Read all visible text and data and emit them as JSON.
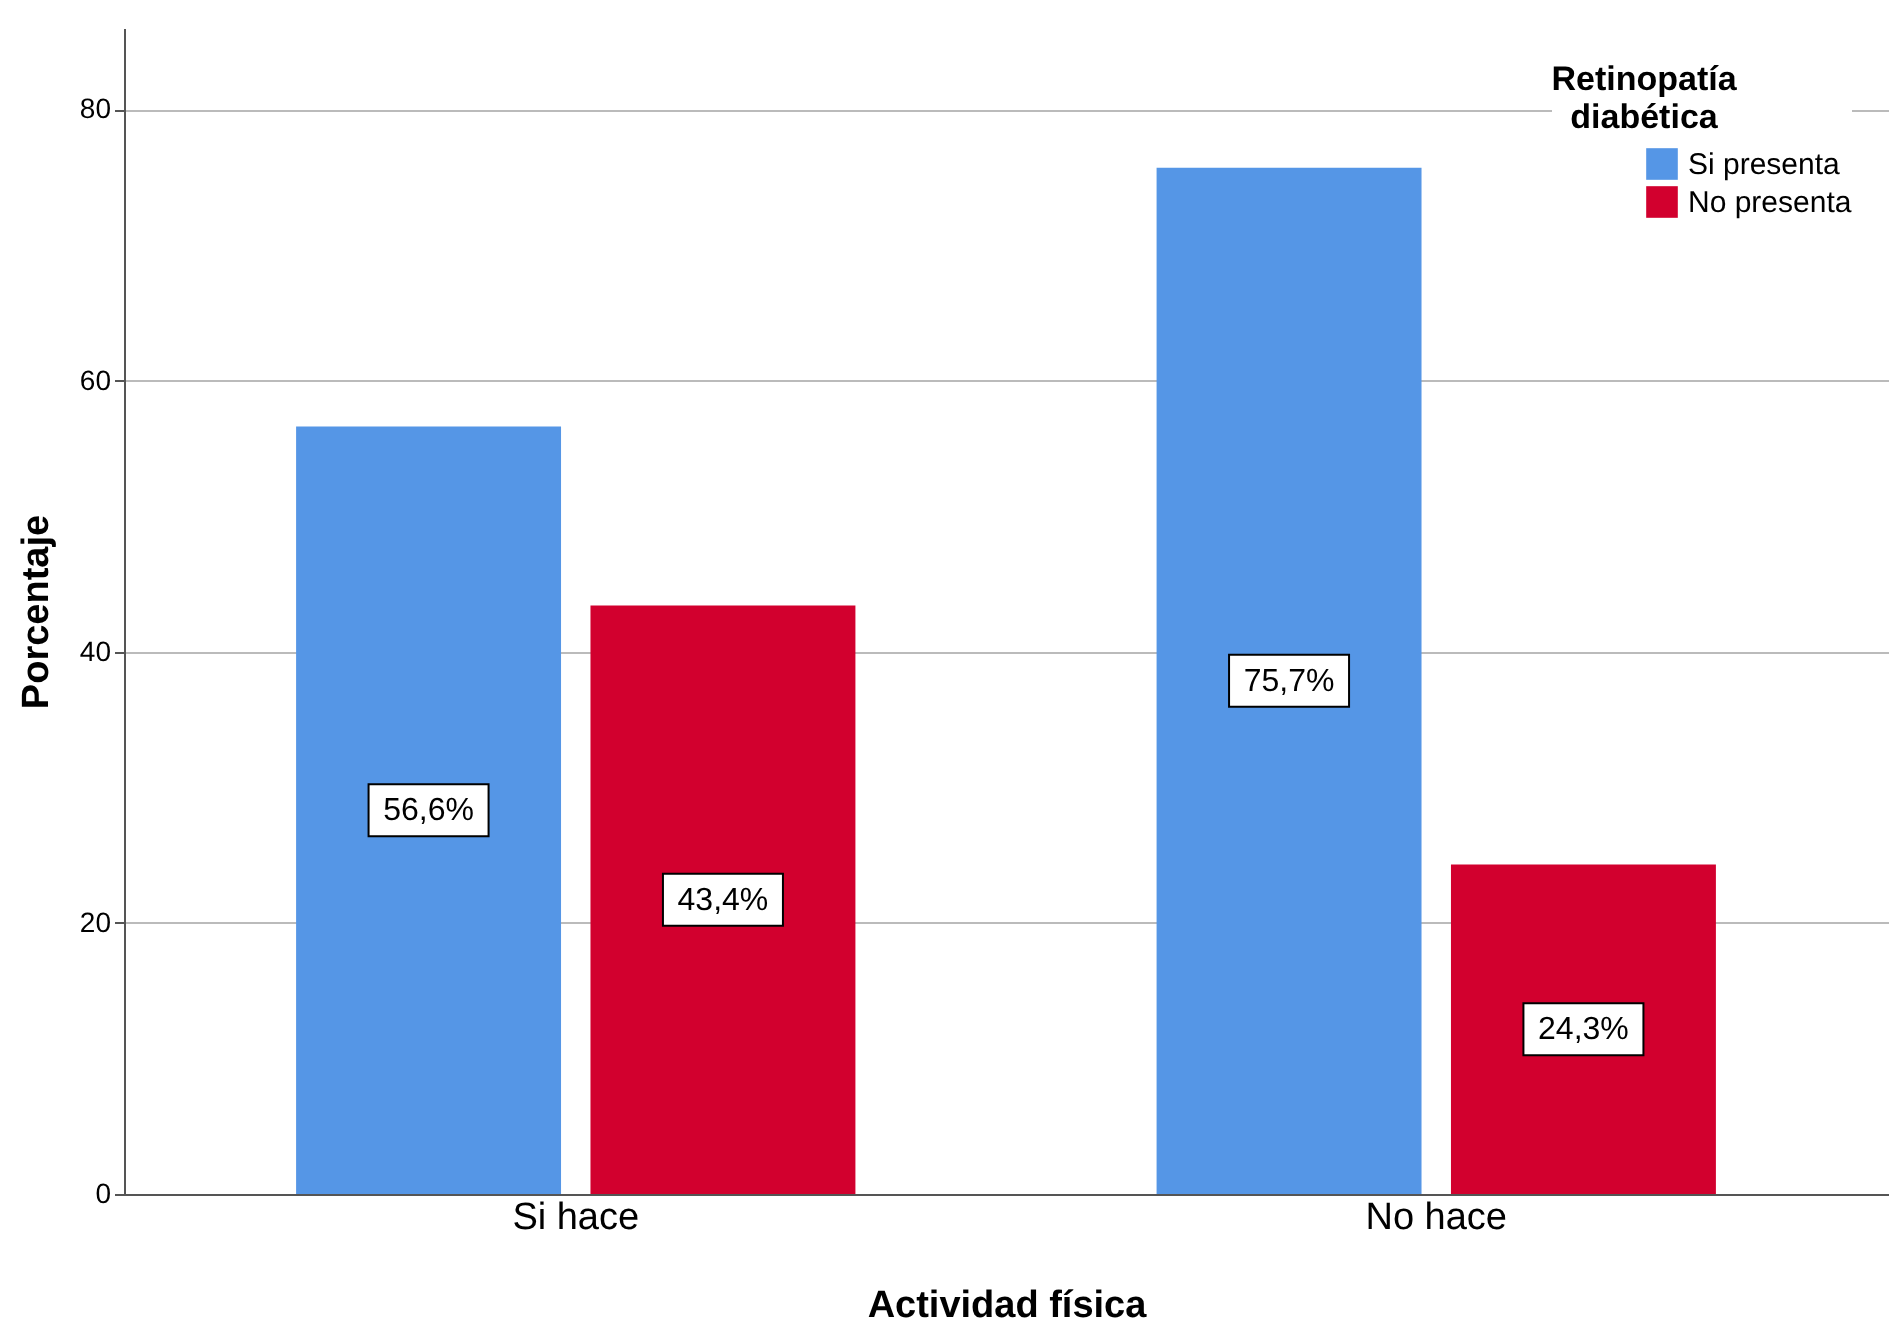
{
  "chart_data": {
    "type": "bar",
    "xlabel": "Actividad física",
    "ylabel": "Porcentaje",
    "legend_title": "Retinopatía diabética",
    "categories": [
      "Si hace",
      "No hace"
    ],
    "series": [
      {
        "name": "Si presenta",
        "color": "#5596e6",
        "values": [
          56.6,
          75.7
        ],
        "value_labels": [
          "56,6%",
          "75,7%"
        ]
      },
      {
        "name": "No presenta",
        "color": "#d2002e",
        "values": [
          43.4,
          24.3
        ],
        "value_labels": [
          "43,4%",
          "24,3%"
        ]
      }
    ],
    "ylim": [
      0,
      86
    ],
    "yticks": [
      0,
      20,
      40,
      60,
      80
    ],
    "grid": "y",
    "legend": "top right"
  }
}
